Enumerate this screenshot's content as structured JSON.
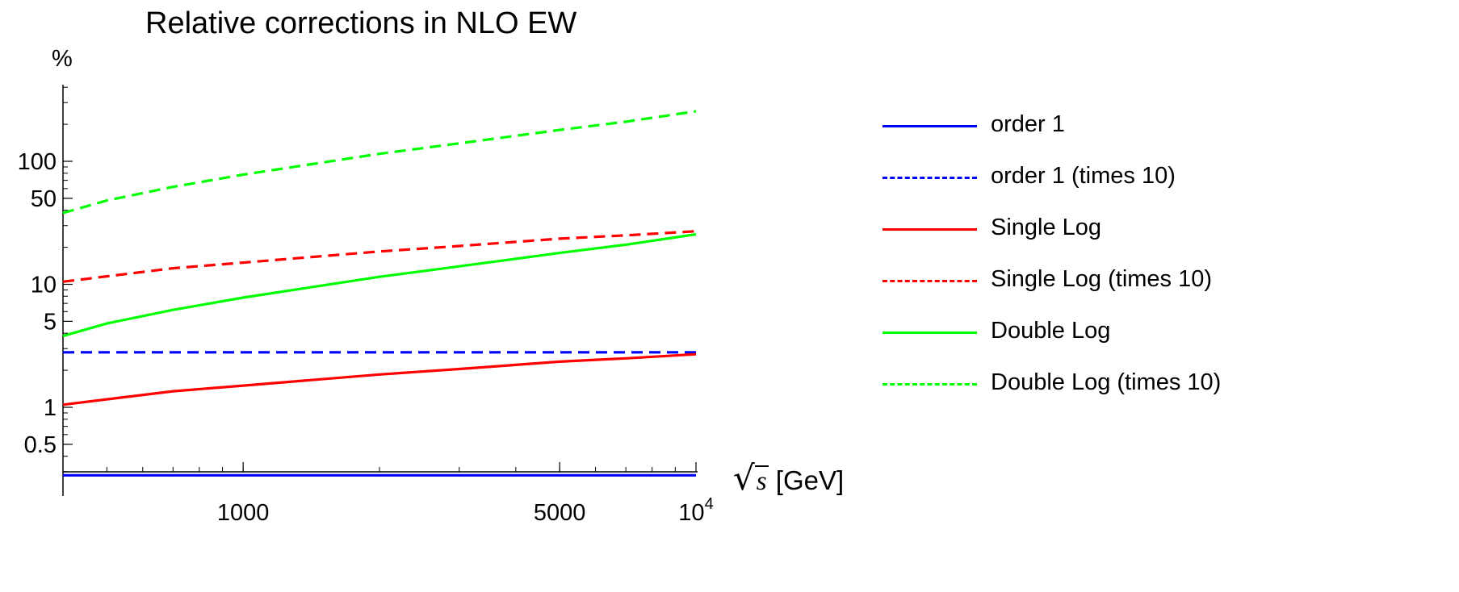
{
  "chart_data": {
    "type": "line",
    "title": "Relative corrections in NLO EW",
    "ylabel": "%",
    "xlabel": {
      "radical": "√",
      "variable": "s",
      "unit": "[GeV]"
    },
    "x_scale": "log",
    "y_scale": "log",
    "xlim": [
      400,
      10000
    ],
    "ylim": [
      0.25,
      800
    ],
    "x_ticks": [
      {
        "value": 1000,
        "label": "1000"
      },
      {
        "value": 5000,
        "label": "5000"
      },
      {
        "value": 10000,
        "label": "10",
        "exponent": "4"
      }
    ],
    "y_ticks": [
      {
        "value": 0.5,
        "label": "0.5"
      },
      {
        "value": 1,
        "label": "1"
      },
      {
        "value": 5,
        "label": "5"
      },
      {
        "value": 10,
        "label": "10"
      },
      {
        "value": 50,
        "label": "50"
      },
      {
        "value": 100,
        "label": "100"
      }
    ],
    "grid": false,
    "legend_position": "right",
    "series": [
      {
        "name": "order 1",
        "color": "#0000ff",
        "dashed": false,
        "x": [
          400,
          10000
        ],
        "values": [
          0.28,
          0.28
        ]
      },
      {
        "name": "order 1 (times 10)",
        "color": "#0000ff",
        "dashed": true,
        "x": [
          400,
          10000
        ],
        "values": [
          2.8,
          2.8
        ]
      },
      {
        "name": "Single Log",
        "color": "#ff0000",
        "dashed": false,
        "x": [
          400,
          700,
          1000,
          2000,
          3000,
          5000,
          7000,
          10000
        ],
        "values": [
          1.05,
          1.35,
          1.5,
          1.85,
          2.05,
          2.35,
          2.5,
          2.7
        ]
      },
      {
        "name": "Single Log (times 10)",
        "color": "#ff0000",
        "dashed": true,
        "x": [
          400,
          700,
          1000,
          2000,
          3000,
          5000,
          7000,
          10000
        ],
        "values": [
          10.5,
          13.5,
          15,
          18.5,
          20.5,
          23.5,
          25,
          27
        ]
      },
      {
        "name": "Double Log",
        "color": "#00ff00",
        "dashed": false,
        "x": [
          400,
          500,
          700,
          1000,
          2000,
          3000,
          5000,
          7000,
          10000
        ],
        "values": [
          3.8,
          4.8,
          6.2,
          7.8,
          11.5,
          14,
          18,
          21,
          25.5
        ]
      },
      {
        "name": "Double Log (times 10)",
        "color": "#00ff00",
        "dashed": true,
        "x": [
          400,
          500,
          700,
          1000,
          2000,
          3000,
          5000,
          7000,
          10000
        ],
        "values": [
          38,
          48,
          62,
          78,
          115,
          140,
          180,
          210,
          255
        ]
      }
    ]
  }
}
